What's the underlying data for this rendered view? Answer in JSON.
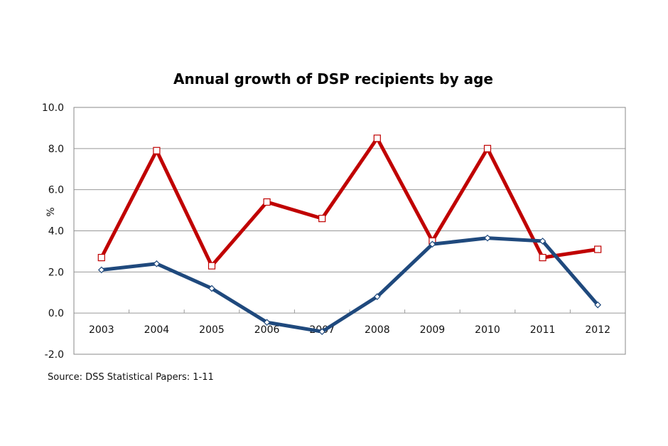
{
  "chart_data": {
    "type": "line",
    "title": "Annual growth of DSP recipients by age",
    "xlabel": "",
    "ylabel": "%",
    "categories": [
      "2003",
      "2004",
      "2005",
      "2006",
      "2007",
      "2008",
      "2009",
      "2010",
      "2011",
      "2012"
    ],
    "ylim": [
      -2.0,
      10.0
    ],
    "yticks": [
      "-2.0",
      "0.0",
      "2.0",
      "4.0",
      "6.0",
      "8.0",
      "10.0"
    ],
    "grid": true,
    "series": [
      {
        "color": "#c00000",
        "marker": "square",
        "values": [
          2.7,
          7.9,
          2.3,
          5.4,
          4.6,
          8.5,
          3.5,
          8.0,
          2.7,
          3.1
        ]
      },
      {
        "color": "#1f497d",
        "marker": "diamond",
        "values": [
          2.1,
          2.4,
          1.2,
          -0.45,
          -0.9,
          0.8,
          3.35,
          3.65,
          3.5,
          0.4
        ]
      }
    ],
    "source": "Source: DSS Statistical Papers: 1-11"
  }
}
